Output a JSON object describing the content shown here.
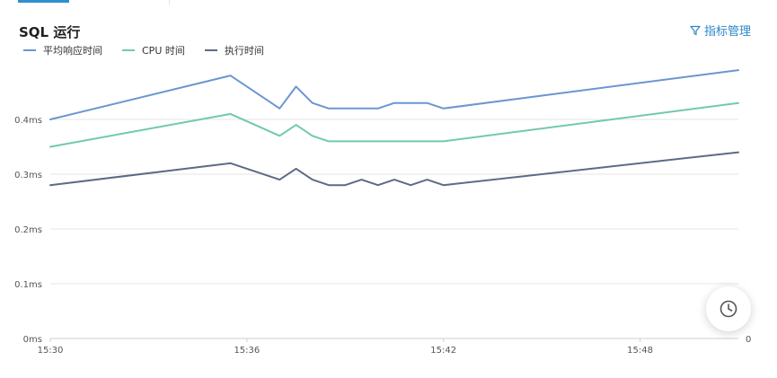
{
  "panel": {
    "title": "SQL 运行",
    "metrics_button_label": "指标管理"
  },
  "colors": {
    "accent": "#2f8fcf",
    "grid": "#e6e6e6",
    "axis": "#cfcfcf"
  },
  "chart_data": {
    "type": "line",
    "title": "SQL 运行",
    "legend_position": "top-left",
    "grid": true,
    "x_range": [
      "15:30",
      "15:51"
    ],
    "x_ticks": [
      "15:30",
      "15:36",
      "15:42",
      "15:48"
    ],
    "y_ticks": [
      "0ms",
      "0.1ms",
      "0.2ms",
      "0.3ms",
      "0.4ms"
    ],
    "y_right_tick": "0",
    "ylim": [
      0,
      0.5
    ],
    "x": [
      "15:30",
      "15:35:30",
      "15:37",
      "15:37:30",
      "15:38",
      "15:38:30",
      "15:39",
      "15:39:30",
      "15:40",
      "15:40:30",
      "15:41",
      "15:41:30",
      "15:42",
      "15:51"
    ],
    "series": [
      {
        "name": "平均响应时间",
        "color": "#6b96d1",
        "values": [
          0.4,
          0.48,
          0.42,
          0.46,
          0.43,
          0.42,
          0.42,
          0.42,
          0.42,
          0.43,
          0.43,
          0.43,
          0.42,
          0.49
        ]
      },
      {
        "name": "CPU 时间",
        "color": "#71cba6",
        "values": [
          0.35,
          0.41,
          0.37,
          0.39,
          0.37,
          0.36,
          0.36,
          0.36,
          0.36,
          0.36,
          0.36,
          0.36,
          0.36,
          0.43
        ]
      },
      {
        "name": "执行时间",
        "color": "#5c6b85",
        "values": [
          0.28,
          0.32,
          0.29,
          0.31,
          0.29,
          0.28,
          0.28,
          0.29,
          0.28,
          0.29,
          0.28,
          0.29,
          0.28,
          0.34
        ]
      }
    ]
  },
  "icons": {
    "filter": "filter-icon",
    "clock": "clock-icon"
  }
}
